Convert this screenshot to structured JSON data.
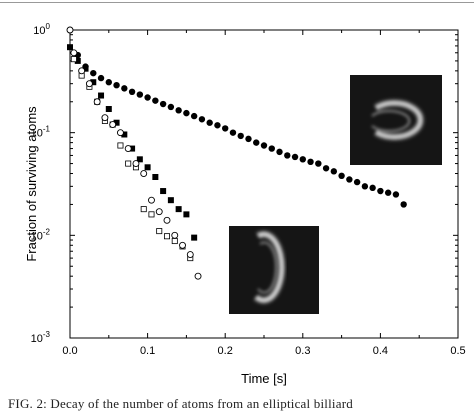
{
  "caption": "FIG. 2: Decay of the number of atoms from an elliptical billiard",
  "chart_data": {
    "type": "scatter",
    "xlabel": "Time [s]",
    "ylabel": "Fraction of surviving atoms",
    "xlim": [
      0.0,
      0.5
    ],
    "ylim": [
      0.001,
      1
    ],
    "yscale": "log",
    "x_ticks": [
      "0.0",
      "0.1",
      "0.2",
      "0.3",
      "0.4",
      "0.5"
    ],
    "y_ticks": [
      {
        "base": "10",
        "exp": "0"
      },
      {
        "base": "10",
        "exp": "-1"
      },
      {
        "base": "10",
        "exp": "-2"
      },
      {
        "base": "10",
        "exp": "-3"
      }
    ],
    "grid": false,
    "series": [
      {
        "marker": "filled-circle",
        "x": [
          0.0,
          0.01,
          0.02,
          0.03,
          0.04,
          0.05,
          0.06,
          0.07,
          0.08,
          0.09,
          0.1,
          0.11,
          0.12,
          0.13,
          0.14,
          0.15,
          0.16,
          0.17,
          0.18,
          0.19,
          0.2,
          0.21,
          0.22,
          0.23,
          0.24,
          0.25,
          0.26,
          0.27,
          0.28,
          0.29,
          0.3,
          0.31,
          0.32,
          0.33,
          0.34,
          0.35,
          0.36,
          0.37,
          0.38,
          0.39,
          0.4,
          0.41,
          0.42,
          0.43
        ],
        "values": [
          1.0,
          0.57,
          0.44,
          0.38,
          0.34,
          0.31,
          0.29,
          0.27,
          0.25,
          0.235,
          0.22,
          0.205,
          0.19,
          0.178,
          0.165,
          0.155,
          0.145,
          0.135,
          0.125,
          0.118,
          0.11,
          0.1,
          0.093,
          0.087,
          0.08,
          0.075,
          0.07,
          0.065,
          0.06,
          0.058,
          0.055,
          0.052,
          0.05,
          0.045,
          0.042,
          0.038,
          0.035,
          0.033,
          0.03,
          0.029,
          0.027,
          0.026,
          0.025,
          0.02
        ]
      },
      {
        "marker": "filled-square",
        "x": [
          0.0,
          0.01,
          0.02,
          0.03,
          0.04,
          0.05,
          0.06,
          0.07,
          0.08,
          0.09,
          0.1,
          0.11,
          0.12,
          0.13,
          0.14,
          0.15,
          0.16
        ],
        "values": [
          0.68,
          0.5,
          0.42,
          0.31,
          0.23,
          0.17,
          0.125,
          0.096,
          0.07,
          0.055,
          0.046,
          0.037,
          0.027,
          0.022,
          0.018,
          0.016,
          0.0095
        ]
      },
      {
        "marker": "open-square",
        "x": [
          0.005,
          0.015,
          0.025,
          0.035,
          0.045,
          0.055,
          0.065,
          0.075,
          0.085,
          0.095,
          0.105,
          0.115,
          0.125,
          0.135,
          0.145,
          0.155
        ],
        "values": [
          0.52,
          0.36,
          0.28,
          0.2,
          0.13,
          0.12,
          0.075,
          0.05,
          0.046,
          0.018,
          0.016,
          0.011,
          0.0098,
          0.0088,
          0.0078,
          0.006
        ]
      },
      {
        "marker": "open-circle",
        "x": [
          0.0,
          0.005,
          0.015,
          0.025,
          0.035,
          0.045,
          0.055,
          0.065,
          0.075,
          0.085,
          0.095,
          0.105,
          0.115,
          0.125,
          0.135,
          0.145,
          0.155,
          0.165
        ],
        "values": [
          1.0,
          0.6,
          0.4,
          0.3,
          0.2,
          0.14,
          0.12,
          0.1,
          0.07,
          0.05,
          0.04,
          0.022,
          0.017,
          0.014,
          0.01,
          0.008,
          0.0065,
          0.004
        ]
      }
    ],
    "insets": [
      {
        "name": "upper-inset",
        "shape": "open ellipse ring"
      },
      {
        "name": "lower-inset",
        "shape": "ring opened on left"
      }
    ]
  }
}
